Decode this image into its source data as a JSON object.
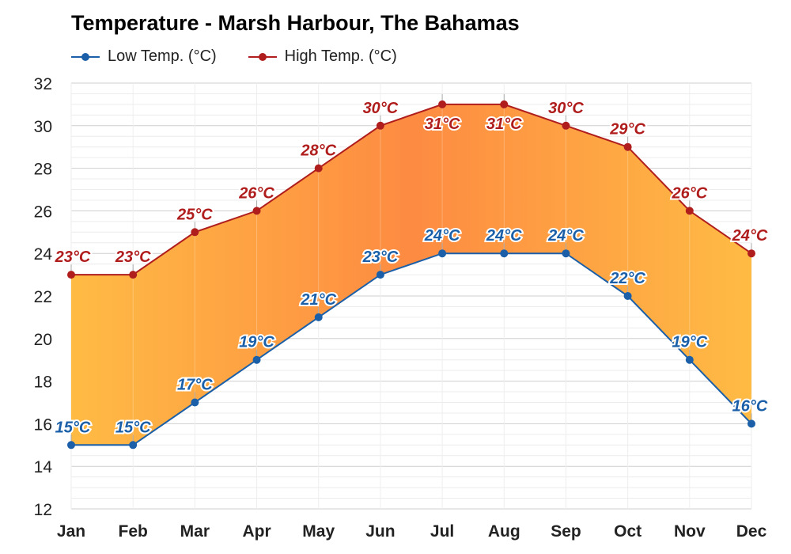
{
  "chart_data": {
    "type": "line",
    "title": "Temperature - Marsh Harbour, The Bahamas",
    "categories": [
      "Jan",
      "Feb",
      "Mar",
      "Apr",
      "May",
      "Jun",
      "Jul",
      "Aug",
      "Sep",
      "Oct",
      "Nov",
      "Dec"
    ],
    "series": [
      {
        "name": "Low Temp. (°C)",
        "color": "#1a5fa8",
        "values": [
          15,
          15,
          17,
          19,
          21,
          23,
          24,
          24,
          24,
          22,
          19,
          16
        ],
        "labels": [
          "15°C",
          "15°C",
          "17°C",
          "19°C",
          "21°C",
          "23°C",
          "24°C",
          "24°C",
          "24°C",
          "22°C",
          "19°C",
          "16°C"
        ]
      },
      {
        "name": "High Temp. (°C)",
        "color": "#b01d1d",
        "values": [
          23,
          23,
          25,
          26,
          28,
          30,
          31,
          31,
          30,
          29,
          26,
          24
        ],
        "labels": [
          "23°C",
          "23°C",
          "25°C",
          "26°C",
          "28°C",
          "30°C",
          "31°C",
          "31°C",
          "30°C",
          "29°C",
          "26°C",
          "24°C"
        ]
      }
    ],
    "ylim": [
      12,
      32
    ],
    "yticks": [
      "12",
      "14",
      "16",
      "18",
      "20",
      "22",
      "24",
      "26",
      "28",
      "30",
      "32"
    ],
    "band_colors": {
      "cool": "#ffbb44",
      "warm": "#fd8b42"
    },
    "grid": true,
    "legend_position": "top-left"
  }
}
